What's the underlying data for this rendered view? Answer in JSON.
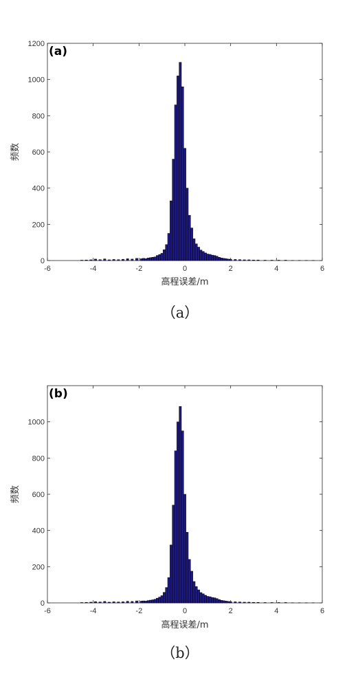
{
  "chart_data": [
    {
      "type": "bar",
      "panel_label": "(a)",
      "caption": "（a）",
      "xlabel": "高程误差/m",
      "ylabel": "频数",
      "xlim": [
        -6,
        6
      ],
      "ylim": [
        0,
        1200
      ],
      "xticks": [
        -6,
        -4,
        -2,
        0,
        2,
        4,
        6
      ],
      "yticks": [
        0,
        200,
        400,
        600,
        800,
        1000,
        1200
      ],
      "grid": false,
      "color": "#1f1a80",
      "bin_width": 0.1,
      "x": [
        -4.5,
        -4.3,
        -4.1,
        -3.9,
        -3.7,
        -3.5,
        -3.3,
        -3.1,
        -2.9,
        -2.7,
        -2.5,
        -2.3,
        -2.1,
        -1.9,
        -1.8,
        -1.7,
        -1.6,
        -1.5,
        -1.4,
        -1.3,
        -1.2,
        -1.1,
        -1.0,
        -0.9,
        -0.8,
        -0.7,
        -0.6,
        -0.5,
        -0.4,
        -0.3,
        -0.2,
        -0.1,
        0.0,
        0.1,
        0.2,
        0.3,
        0.4,
        0.5,
        0.6,
        0.7,
        0.8,
        0.9,
        1.0,
        1.1,
        1.2,
        1.3,
        1.4,
        1.5,
        1.6,
        1.7,
        1.8,
        1.9,
        2.0,
        2.2,
        2.4,
        2.6,
        2.8,
        3.0,
        3.2,
        3.5,
        3.8,
        4.1,
        4.4,
        4.7,
        5.0,
        5.3,
        5.6
      ],
      "values": [
        2,
        3,
        4,
        8,
        5,
        9,
        4,
        6,
        5,
        7,
        10,
        8,
        12,
        10,
        12,
        10,
        14,
        16,
        18,
        20,
        28,
        33,
        40,
        60,
        88,
        150,
        330,
        560,
        860,
        1020,
        1095,
        960,
        620,
        400,
        250,
        180,
        120,
        92,
        74,
        58,
        50,
        42,
        36,
        34,
        30,
        28,
        24,
        18,
        14,
        12,
        10,
        8,
        7,
        6,
        5,
        4,
        4,
        3,
        3,
        2,
        2,
        2,
        2,
        1,
        1,
        1,
        1
      ]
    },
    {
      "type": "bar",
      "panel_label": "(b)",
      "caption": "（b）",
      "xlabel": "高程误差/m",
      "ylabel": "频数",
      "xlim": [
        -6,
        6
      ],
      "ylim": [
        0,
        1200
      ],
      "xticks": [
        -6,
        -4,
        -2,
        0,
        2,
        4,
        6
      ],
      "yticks": [
        0,
        200,
        400,
        600,
        800,
        1000
      ],
      "grid": false,
      "color": "#1f1a80",
      "bin_width": 0.1,
      "x": [
        -4.5,
        -4.3,
        -4.1,
        -3.9,
        -3.7,
        -3.5,
        -3.3,
        -3.1,
        -2.9,
        -2.7,
        -2.5,
        -2.3,
        -2.1,
        -1.9,
        -1.8,
        -1.7,
        -1.6,
        -1.5,
        -1.4,
        -1.3,
        -1.2,
        -1.1,
        -1.0,
        -0.9,
        -0.8,
        -0.7,
        -0.6,
        -0.5,
        -0.4,
        -0.3,
        -0.2,
        -0.1,
        0.0,
        0.1,
        0.2,
        0.3,
        0.4,
        0.5,
        0.6,
        0.7,
        0.8,
        0.9,
        1.0,
        1.1,
        1.2,
        1.3,
        1.4,
        1.5,
        1.6,
        1.7,
        1.8,
        1.9,
        2.0,
        2.2,
        2.4,
        2.6,
        2.8,
        3.0,
        3.2,
        3.5,
        3.8,
        4.1,
        4.4,
        4.7,
        5.0,
        5.3,
        5.6
      ],
      "values": [
        2,
        3,
        4,
        7,
        5,
        8,
        4,
        6,
        5,
        6,
        9,
        8,
        11,
        10,
        11,
        10,
        13,
        15,
        17,
        20,
        26,
        32,
        40,
        58,
        85,
        140,
        320,
        540,
        840,
        1000,
        1085,
        950,
        600,
        390,
        240,
        175,
        118,
        90,
        72,
        57,
        50,
        42,
        36,
        34,
        30,
        28,
        24,
        18,
        14,
        12,
        10,
        8,
        7,
        6,
        5,
        4,
        4,
        3,
        3,
        2,
        2,
        2,
        2,
        1,
        1,
        1,
        1
      ]
    }
  ]
}
